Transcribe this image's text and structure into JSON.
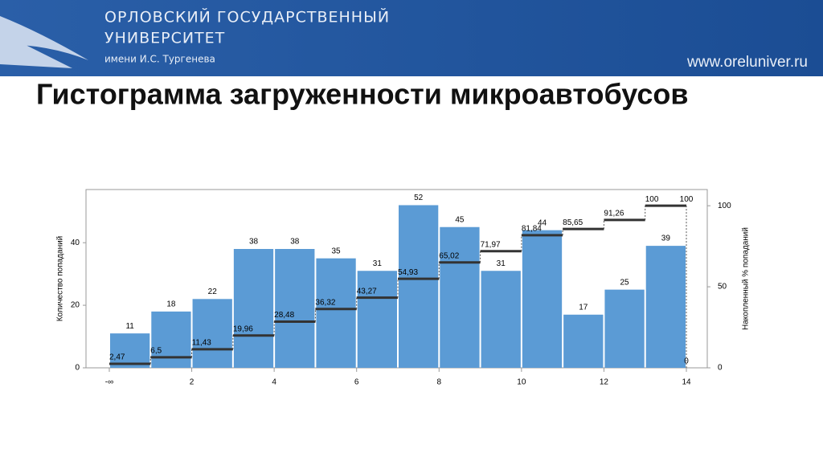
{
  "header": {
    "line1": "ОРЛОВСКИЙ ГОСУДАРСТВЕННЫЙ",
    "line2": "УНИВЕРСИТЕТ",
    "line3": "имени И.С. Тургенева",
    "url": "www.oreluniver.ru"
  },
  "chart_data": {
    "type": "histogram",
    "title": "Гистограмма загруженности микроавтобусов",
    "y_label": "Количество попаданий",
    "y2_label": "Накопленный % попаданий",
    "bins": [
      0,
      1,
      2,
      3,
      4,
      5,
      6,
      7,
      8,
      9,
      10,
      11,
      12,
      13,
      14
    ],
    "xlim": [
      0,
      14
    ],
    "xticks": [
      {
        "value": 0,
        "label": "-∞"
      },
      2,
      4,
      6,
      8,
      10,
      12,
      14
    ],
    "series": [
      {
        "name": "Количество попаданий",
        "color": "#5b9bd5",
        "values": [
          11,
          18,
          22,
          38,
          38,
          35,
          31,
          52,
          45,
          31,
          44,
          17,
          25,
          39
        ]
      },
      {
        "name": "Накопленный % попаданий",
        "color": "#333333",
        "axis": "y2",
        "values": [
          2.47,
          6.5,
          11.43,
          19.96,
          28.48,
          36.32,
          43.27,
          54.93,
          65.02,
          71.97,
          81.84,
          85.65,
          91.26,
          100
        ],
        "value_labels": [
          "2,47",
          "6,5",
          "11,43",
          "19,96",
          "28,48",
          "36,32",
          "43,27",
          "54,93",
          "65,02",
          "71,97",
          "81,84",
          "85,65",
          "91,26",
          "100"
        ]
      }
    ],
    "overflow": {
      "count": 0,
      "cumulative": 100
    },
    "ylim": [
      0,
      57
    ],
    "yticks": [
      0,
      20,
      40
    ],
    "y2lim": [
      0,
      110
    ],
    "y2ticks": [
      0,
      50,
      100
    ]
  }
}
